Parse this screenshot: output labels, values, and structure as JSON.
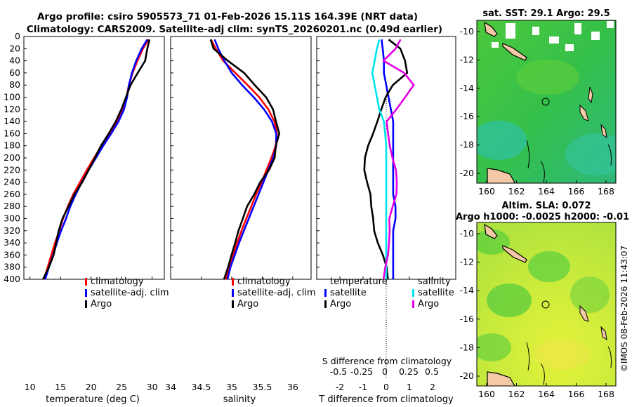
{
  "title": {
    "line1": "Argo profile: csiro 5905573_71 01-Feb-2026 15.11S 164.39E (NRT data)",
    "line2": "Climatology: CARS2009. Satellite-adj clim: synTS_20260201.nc (0.49d earlier)"
  },
  "credit": "©IMOS 08-Feb-2026 11:43:07",
  "colors": {
    "clim": "#ff0000",
    "sat": "#0000ff",
    "argo": "#000000",
    "sat_s": "#00e5ee",
    "argo_s": "#e600e6"
  },
  "chart_data": [
    {
      "type": "line",
      "name": "temperature",
      "xlabel": "temperature (deg C)",
      "xlim": [
        9,
        32
      ],
      "ylim": [
        400,
        0
      ],
      "xticks": [
        10,
        15,
        20,
        25,
        30
      ],
      "yticks": [
        0,
        20,
        40,
        60,
        80,
        100,
        120,
        140,
        160,
        180,
        200,
        220,
        240,
        260,
        280,
        300,
        320,
        340,
        360,
        380,
        400
      ],
      "legend": [
        "climatology",
        "satellite-adj. clim",
        "Argo"
      ],
      "depth": [
        5,
        20,
        40,
        60,
        80,
        100,
        120,
        140,
        160,
        180,
        200,
        220,
        240,
        260,
        280,
        300,
        320,
        340,
        360,
        380,
        400
      ],
      "series": [
        {
          "name": "climatology",
          "values": [
            29.4,
            28.5,
            27.6,
            26.8,
            26.2,
            25.8,
            25.2,
            24.2,
            23.0,
            21.7,
            20.5,
            19.3,
            18.2,
            17.1,
            16.2,
            15.4,
            14.8,
            14.1,
            13.5,
            12.9,
            12.3
          ]
        },
        {
          "name": "satellite-adj. clim",
          "values": [
            29.2,
            28.3,
            27.4,
            26.7,
            26.2,
            25.9,
            25.4,
            24.5,
            23.3,
            22.0,
            20.8,
            19.6,
            18.5,
            17.5,
            16.6,
            15.9,
            15.1,
            14.4,
            13.8,
            13.1,
            12.5
          ]
        },
        {
          "name": "Argo",
          "values": [
            29.4,
            29.2,
            29.0,
            27.8,
            26.5,
            25.6,
            24.8,
            24.0,
            23.0,
            21.8,
            20.7,
            19.5,
            18.4,
            17.2,
            16.4,
            15.5,
            14.8,
            14.2,
            13.7,
            13.0,
            12.2
          ]
        }
      ]
    },
    {
      "type": "line",
      "name": "salinity",
      "xlabel": "salinity",
      "xlim": [
        34,
        36.3
      ],
      "ylim": [
        400,
        0
      ],
      "xticks": [
        34,
        34.5,
        35,
        35.5,
        36
      ],
      "legend": [
        "climatology",
        "satellite-adj. clim",
        "Argo"
      ],
      "depth": [
        5,
        20,
        40,
        60,
        80,
        100,
        120,
        140,
        160,
        180,
        200,
        220,
        240,
        260,
        280,
        300,
        320,
        340,
        360,
        380,
        400
      ],
      "series": [
        {
          "name": "climatology",
          "values": [
            34.66,
            34.74,
            34.86,
            35.06,
            35.26,
            35.45,
            35.6,
            35.7,
            35.74,
            35.72,
            35.65,
            35.57,
            35.49,
            35.4,
            35.32,
            35.24,
            35.16,
            35.09,
            35.02,
            34.96,
            34.9
          ]
        },
        {
          "name": "satellite-adj. clim",
          "values": [
            34.72,
            34.78,
            34.88,
            35.0,
            35.17,
            35.36,
            35.53,
            35.66,
            35.73,
            35.73,
            35.68,
            35.6,
            35.52,
            35.44,
            35.36,
            35.28,
            35.2,
            35.12,
            35.05,
            34.98,
            34.93
          ]
        },
        {
          "name": "Argo",
          "values": [
            34.64,
            34.7,
            34.95,
            35.22,
            35.38,
            35.55,
            35.66,
            35.72,
            35.79,
            35.74,
            35.71,
            35.6,
            35.45,
            35.36,
            35.26,
            35.2,
            35.12,
            35.05,
            34.98,
            34.93,
            34.88
          ]
        }
      ]
    },
    {
      "type": "line",
      "name": "difference from climatology",
      "xlabel": "T difference from climatology",
      "top_xlabel": "S difference from climatology",
      "xlim": [
        -3,
        3
      ],
      "ylim": [
        400,
        0
      ],
      "xticks": [
        -2,
        -1,
        0,
        1,
        2
      ],
      "top_xticks": [
        "-0.5",
        "-0.25",
        "0",
        "0.25",
        "0.5"
      ],
      "legend_titles": [
        "temperature",
        "salinity"
      ],
      "legend": [
        "satellite",
        "Argo",
        "satellite",
        "Argo"
      ],
      "depth": [
        5,
        20,
        40,
        60,
        80,
        100,
        120,
        140,
        160,
        180,
        200,
        220,
        240,
        260,
        280,
        300,
        320,
        340,
        360,
        380,
        400
      ],
      "series": [
        {
          "name": "temperature satellite",
          "values": [
            -0.2,
            -0.15,
            -0.1,
            -0.1,
            0.0,
            0.1,
            0.2,
            0.3,
            0.3,
            0.3,
            0.3,
            0.3,
            0.3,
            0.3,
            0.4,
            0.4,
            0.3,
            0.3,
            0.3,
            0.3,
            0.3
          ]
        },
        {
          "name": "temperature Argo",
          "values": [
            0.0,
            0.5,
            0.8,
            1.0,
            0.4,
            0.0,
            -0.3,
            -0.5,
            -0.6,
            -0.7,
            -0.8,
            -0.9,
            -0.9,
            -0.8,
            -0.7,
            -0.5,
            -0.4,
            -0.3,
            -0.2,
            -0.1,
            0.0
          ]
        },
        {
          "name": "salinity satellite",
          "values": [
            -0.3,
            -0.4,
            -0.5,
            -0.6,
            -0.5,
            -0.4,
            -0.3,
            -0.1,
            -0.05,
            0.0,
            0.0,
            0.0,
            0.0,
            0.0,
            0.0,
            0.0,
            0.0,
            0.0,
            0.0,
            0.0,
            0.0
          ]
        },
        {
          "name": "salinity Argo",
          "values": [
            0.6,
            0.5,
            0.0,
            0.8,
            1.1,
            0.7,
            0.4,
            0.1,
            0.2,
            0.2,
            0.2,
            0.3,
            0.4,
            0.5,
            0.4,
            0.2,
            0.1,
            0.0,
            0.0,
            0.0,
            0.0
          ]
        }
      ]
    },
    {
      "type": "heatmap",
      "name": "sst map",
      "title": "sat. SST: 29.1 Argo: 29.5",
      "xticks": [
        160,
        162,
        164,
        166,
        168
      ],
      "yticks": [
        -10,
        -12,
        -14,
        -16,
        -18,
        -20
      ]
    },
    {
      "type": "heatmap",
      "name": "sla map",
      "title": "Altim. SLA: 0.072",
      "subtitle": "Argo h1000: -0.0025 h2000: -0.01",
      "xticks": [
        160,
        162,
        164,
        166,
        168
      ],
      "yticks": [
        -10,
        -12,
        -14,
        -16,
        -18,
        -20
      ]
    }
  ]
}
